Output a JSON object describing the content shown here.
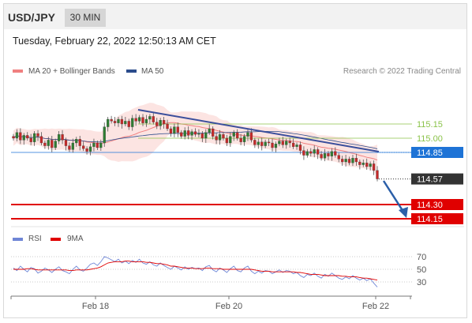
{
  "header": {
    "pair": "USD/JPY",
    "timeframe": "30 MIN"
  },
  "timestamp": "Tuesday, February 22, 2022 12:50:13 AM CET",
  "legend_main": [
    {
      "label": "MA 20 + Bollinger Bands",
      "color": "#f08080"
    },
    {
      "label": "MA 50",
      "color": "#2b4c8c"
    }
  ],
  "credit": "Research © 2022 Trading Central",
  "legend_rsi": [
    {
      "label": "RSI",
      "color": "#6f86d6"
    },
    {
      "label": "9MA",
      "color": "#e00000"
    }
  ],
  "chart_data": {
    "type": "candlestick",
    "x_ticks": [
      "Feb 18",
      "Feb 20",
      "Feb 22"
    ],
    "price_levels": [
      {
        "value": 115.15,
        "label": "115.15",
        "kind": "resistance",
        "color": "#8bc34a"
      },
      {
        "value": 115.0,
        "label": "115.00",
        "kind": "resistance",
        "color": "#8bc34a"
      },
      {
        "value": 114.85,
        "label": "114.85",
        "kind": "pivot",
        "color": "#1e73d6"
      },
      {
        "value": 114.57,
        "label": "114.57",
        "kind": "last",
        "color": "#333333"
      },
      {
        "value": 114.3,
        "label": "114.30",
        "kind": "support",
        "color": "#e00000"
      },
      {
        "value": 114.15,
        "label": "114.15",
        "kind": "support",
        "color": "#e00000"
      }
    ],
    "rsi_levels": [
      70,
      50,
      30
    ],
    "closes": [
      115.0,
      115.06,
      114.98,
      115.03,
      115.0,
      114.96,
      115.05,
      115.02,
      114.95,
      114.92,
      114.98,
      114.9,
      114.97,
      115.04,
      114.98,
      114.92,
      114.88,
      114.95,
      114.99,
      114.92,
      114.89,
      114.86,
      114.91,
      114.95,
      114.9,
      114.95,
      115.12,
      115.2,
      115.18,
      115.16,
      115.2,
      115.15,
      115.18,
      115.12,
      115.21,
      115.18,
      115.22,
      115.16,
      115.2,
      115.23,
      115.17,
      115.13,
      115.19,
      115.15,
      115.1,
      115.05,
      115.12,
      115.06,
      115.02,
      115.08,
      115.03,
      115.07,
      115.04,
      115.05,
      115.0,
      115.06,
      115.1,
      115.02,
      114.98,
      115.04,
      115.0,
      114.95,
      115.02,
      115.06,
      115.0,
      114.96,
      115.02,
      115.06,
      114.98,
      114.93,
      114.96,
      114.92,
      114.96,
      114.95,
      114.9,
      114.94,
      114.97,
      114.93,
      114.97,
      114.95,
      114.91,
      114.93,
      114.87,
      114.82,
      114.86,
      114.84,
      114.88,
      114.83,
      114.79,
      114.84,
      114.81,
      114.86,
      114.82,
      114.78,
      114.75,
      114.78,
      114.74,
      114.79,
      114.75,
      114.72,
      114.74,
      114.7,
      114.73,
      114.66,
      114.57
    ],
    "rsi": [
      52,
      48,
      55,
      50,
      46,
      53,
      51,
      44,
      47,
      52,
      49,
      45,
      50,
      54,
      48,
      46,
      43,
      50,
      55,
      49,
      47,
      52,
      58,
      60,
      56,
      62,
      70,
      68,
      65,
      62,
      66,
      60,
      63,
      59,
      64,
      61,
      66,
      60,
      58,
      62,
      57,
      55,
      60,
      56,
      53,
      50,
      55,
      52,
      49,
      54,
      50,
      53,
      51,
      52,
      48,
      54,
      56,
      49,
      46,
      52,
      49,
      45,
      51,
      55,
      48,
      46,
      52,
      55,
      47,
      43,
      47,
      44,
      48,
      47,
      43,
      46,
      49,
      45,
      48,
      47,
      43,
      45,
      40,
      37,
      42,
      40,
      44,
      39,
      36,
      42,
      39,
      44,
      40,
      36,
      34,
      38,
      35,
      40,
      36,
      33,
      36,
      32,
      35,
      28,
      22
    ],
    "rsi_ma": [
      50,
      50,
      50,
      50,
      51,
      51,
      50,
      49,
      49,
      49,
      49,
      49,
      49,
      49,
      49,
      49,
      48,
      48,
      49,
      49,
      49,
      49,
      50,
      51,
      52,
      54,
      57,
      60,
      61,
      62,
      62,
      62,
      63,
      63,
      62,
      62,
      62,
      62,
      61,
      61,
      60,
      59,
      59,
      58,
      57,
      55,
      55,
      54,
      53,
      52,
      52,
      52,
      51,
      51,
      51,
      52,
      52,
      51,
      51,
      51,
      50,
      50,
      50,
      50,
      50,
      50,
      50,
      50,
      50,
      49,
      48,
      47,
      47,
      47,
      46,
      46,
      46,
      46,
      46,
      46,
      46,
      45,
      45,
      44,
      43,
      42,
      42,
      42,
      41,
      40,
      40,
      40,
      40,
      40,
      39,
      39,
      38,
      38,
      38,
      37,
      36,
      36,
      35,
      34,
      33
    ]
  }
}
